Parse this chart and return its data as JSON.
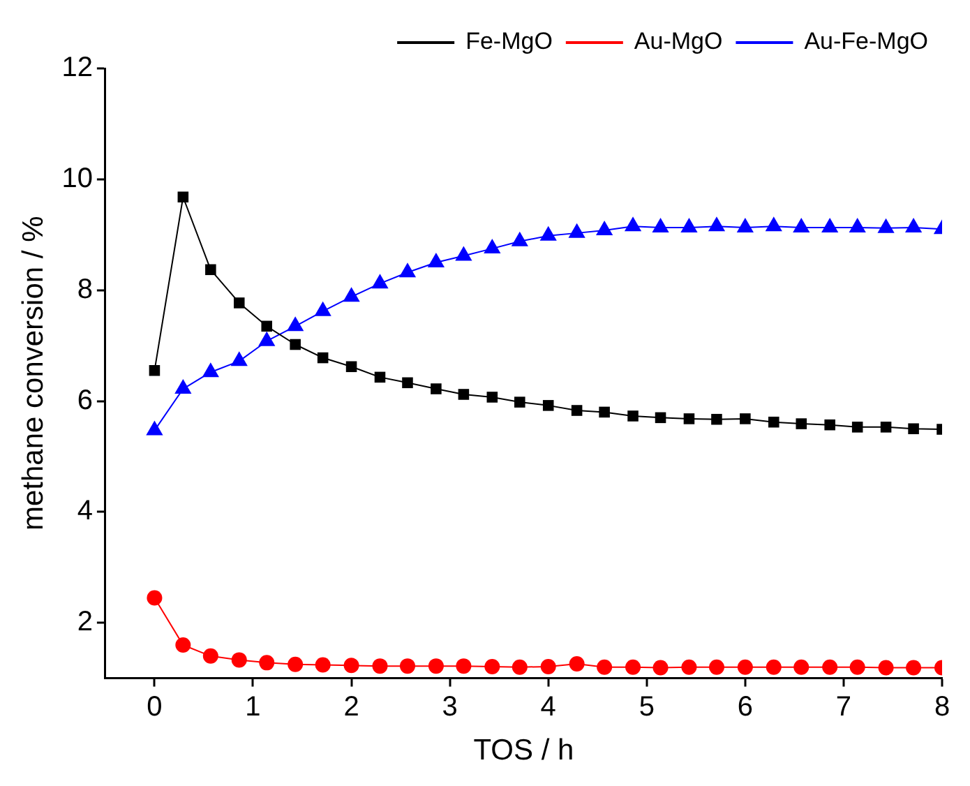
{
  "chart_data": {
    "type": "line",
    "xlabel": "TOS / h",
    "ylabel": "methane conversion / %",
    "x": [
      0,
      0.29,
      0.57,
      0.86,
      1.14,
      1.43,
      1.71,
      2,
      2.29,
      2.57,
      2.86,
      3.14,
      3.43,
      3.71,
      4,
      4.29,
      4.57,
      4.86,
      5.14,
      5.43,
      5.71,
      6,
      6.29,
      6.57,
      6.86,
      7.14,
      7.43,
      7.71,
      8
    ],
    "series": [
      {
        "name": "Fe-MgO",
        "color": "#000000",
        "marker": "square",
        "values": [
          6.55,
          9.68,
          8.37,
          7.77,
          7.35,
          7.02,
          6.78,
          6.62,
          6.43,
          6.33,
          6.22,
          6.12,
          6.07,
          5.98,
          5.92,
          5.83,
          5.8,
          5.73,
          5.7,
          5.68,
          5.67,
          5.68,
          5.62,
          5.59,
          5.57,
          5.53,
          5.53,
          5.5,
          5.49
        ]
      },
      {
        "name": "Au-MgO",
        "color": "#ff0000",
        "marker": "circle",
        "values": [
          2.45,
          1.6,
          1.4,
          1.33,
          1.28,
          1.25,
          1.24,
          1.23,
          1.22,
          1.22,
          1.22,
          1.22,
          1.21,
          1.2,
          1.21,
          1.26,
          1.2,
          1.2,
          1.19,
          1.2,
          1.2,
          1.2,
          1.2,
          1.2,
          1.2,
          1.2,
          1.19,
          1.19,
          1.19
        ]
      },
      {
        "name": "Au-Fe-MgO",
        "color": "#0000ff",
        "marker": "triangle",
        "values": [
          5.47,
          6.22,
          6.52,
          6.72,
          7.08,
          7.35,
          7.62,
          7.88,
          8.12,
          8.32,
          8.5,
          8.62,
          8.75,
          8.88,
          8.98,
          9.03,
          9.08,
          9.15,
          9.13,
          9.13,
          9.15,
          9.13,
          9.15,
          9.13,
          9.13,
          9.13,
          9.12,
          9.13,
          9.1
        ]
      }
    ],
    "xlim": [
      -0.5,
      8
    ],
    "xticks": [
      0,
      1,
      2,
      3,
      4,
      5,
      6,
      7,
      8
    ],
    "ylim": [
      1,
      12
    ],
    "yticks": [
      2,
      4,
      6,
      8,
      10,
      12
    ],
    "grid": false,
    "legend": "top right"
  }
}
